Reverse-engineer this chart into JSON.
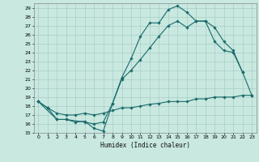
{
  "xlabel": "Humidex (Indice chaleur)",
  "bg_color": "#c8e8e0",
  "grid_color": "#a0c8c0",
  "line_color": "#1a6b6b",
  "xlim": [
    -0.5,
    23.5
  ],
  "ylim": [
    15,
    29.5
  ],
  "xticks": [
    0,
    1,
    2,
    3,
    4,
    5,
    6,
    7,
    8,
    9,
    10,
    11,
    12,
    13,
    14,
    15,
    16,
    17,
    18,
    19,
    20,
    21,
    22,
    23
  ],
  "yticks": [
    15,
    16,
    17,
    18,
    19,
    20,
    21,
    22,
    23,
    24,
    25,
    26,
    27,
    28,
    29
  ],
  "line1_x": [
    0,
    1,
    2,
    3,
    4,
    5,
    6,
    7,
    8,
    9,
    10,
    11,
    12,
    13,
    14,
    15,
    16,
    17,
    18,
    19,
    20,
    21,
    22,
    23
  ],
  "line1_y": [
    18.5,
    17.8,
    16.5,
    16.5,
    16.2,
    16.3,
    15.5,
    15.2,
    18.3,
    21.2,
    23.3,
    25.8,
    27.3,
    27.3,
    28.8,
    29.2,
    28.5,
    27.5,
    27.5,
    26.8,
    25.2,
    24.2,
    21.8,
    19.2
  ],
  "line2_x": [
    0,
    2,
    3,
    5,
    6,
    7,
    8,
    9,
    10,
    11,
    12,
    13,
    14,
    15,
    16,
    17,
    18,
    19,
    20,
    21,
    22
  ],
  "line2_y": [
    18.5,
    16.5,
    16.5,
    16.2,
    16.0,
    16.2,
    18.3,
    21.0,
    22.0,
    23.2,
    24.5,
    25.8,
    27.0,
    27.5,
    26.8,
    27.5,
    27.5,
    25.2,
    24.2,
    24.0,
    21.8
  ],
  "line3_x": [
    0,
    1,
    2,
    3,
    4,
    5,
    6,
    7,
    8,
    9,
    10,
    11,
    12,
    13,
    14,
    15,
    16,
    17,
    18,
    19,
    20,
    21,
    22,
    23
  ],
  "line3_y": [
    18.5,
    17.8,
    17.2,
    17.0,
    17.0,
    17.2,
    17.0,
    17.2,
    17.5,
    17.8,
    17.8,
    18.0,
    18.2,
    18.3,
    18.5,
    18.5,
    18.5,
    18.8,
    18.8,
    19.0,
    19.0,
    19.0,
    19.2,
    19.2
  ]
}
